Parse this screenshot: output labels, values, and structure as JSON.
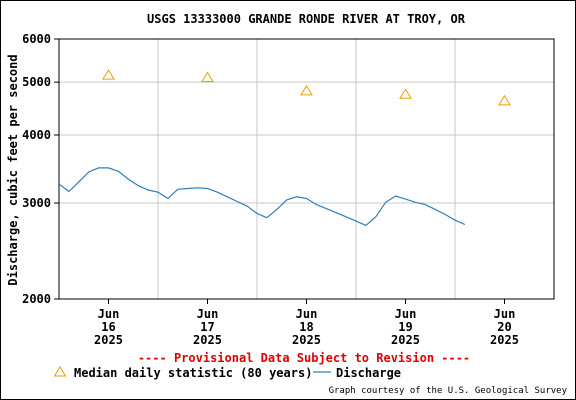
{
  "chart_data": {
    "type": "line",
    "title": "USGS 13333000 GRANDE RONDE RIVER AT TROY, OR",
    "xlabel": "",
    "ylabel": "Discharge, cubic feet per second",
    "y_scale": "log",
    "ylim": [
      2000,
      6000
    ],
    "y_ticks": [
      "2000",
      "3000",
      "4000",
      "5000",
      "6000"
    ],
    "grid": true,
    "x_ticks": [
      {
        "month": "Jun",
        "day": "16",
        "year": "2025"
      },
      {
        "month": "Jun",
        "day": "17",
        "year": "2025"
      },
      {
        "month": "Jun",
        "day": "18",
        "year": "2025"
      },
      {
        "month": "Jun",
        "day": "19",
        "year": "2025"
      },
      {
        "month": "Jun",
        "day": "20",
        "year": "2025"
      }
    ],
    "series": [
      {
        "name": "Median daily statistic (80 years)",
        "marker": "triangle",
        "color": "#E8A000",
        "x": [
          16,
          17,
          18,
          19,
          20
        ],
        "values": [
          5150,
          5100,
          4820,
          4750,
          4620
        ]
      },
      {
        "name": "Discharge",
        "color": "#2E7FB8",
        "x": [
          15.5,
          15.6,
          15.7,
          15.8,
          15.9,
          16.0,
          16.1,
          16.2,
          16.3,
          16.4,
          16.5,
          16.6,
          16.7,
          16.8,
          16.9,
          17.0,
          17.1,
          17.2,
          17.3,
          17.4,
          17.5,
          17.6,
          17.7,
          17.8,
          17.9,
          18.0,
          18.1,
          18.2,
          18.3,
          18.4,
          18.5,
          18.6,
          18.7,
          18.8,
          18.9,
          19.0,
          19.1,
          19.2,
          19.3,
          19.4,
          19.5,
          19.6
        ],
        "values": [
          3250,
          3150,
          3280,
          3420,
          3480,
          3480,
          3430,
          3320,
          3230,
          3170,
          3140,
          3060,
          3180,
          3190,
          3200,
          3190,
          3140,
          3080,
          3020,
          2960,
          2870,
          2820,
          2920,
          3040,
          3080,
          3060,
          2980,
          2930,
          2880,
          2830,
          2780,
          2730,
          2830,
          3010,
          3090,
          3050,
          3010,
          2980,
          2920,
          2860,
          2790,
          2740
        ]
      }
    ],
    "legend_position": "bottom-left"
  },
  "notice": "---- Provisional Data Subject to Revision ----",
  "credit": "Graph courtesy of the U.S. Geological Survey",
  "colors": {
    "notice": "#E00000",
    "grid": "#C8C8C8",
    "discharge": "#2E7FB8",
    "median": "#E8A000"
  }
}
